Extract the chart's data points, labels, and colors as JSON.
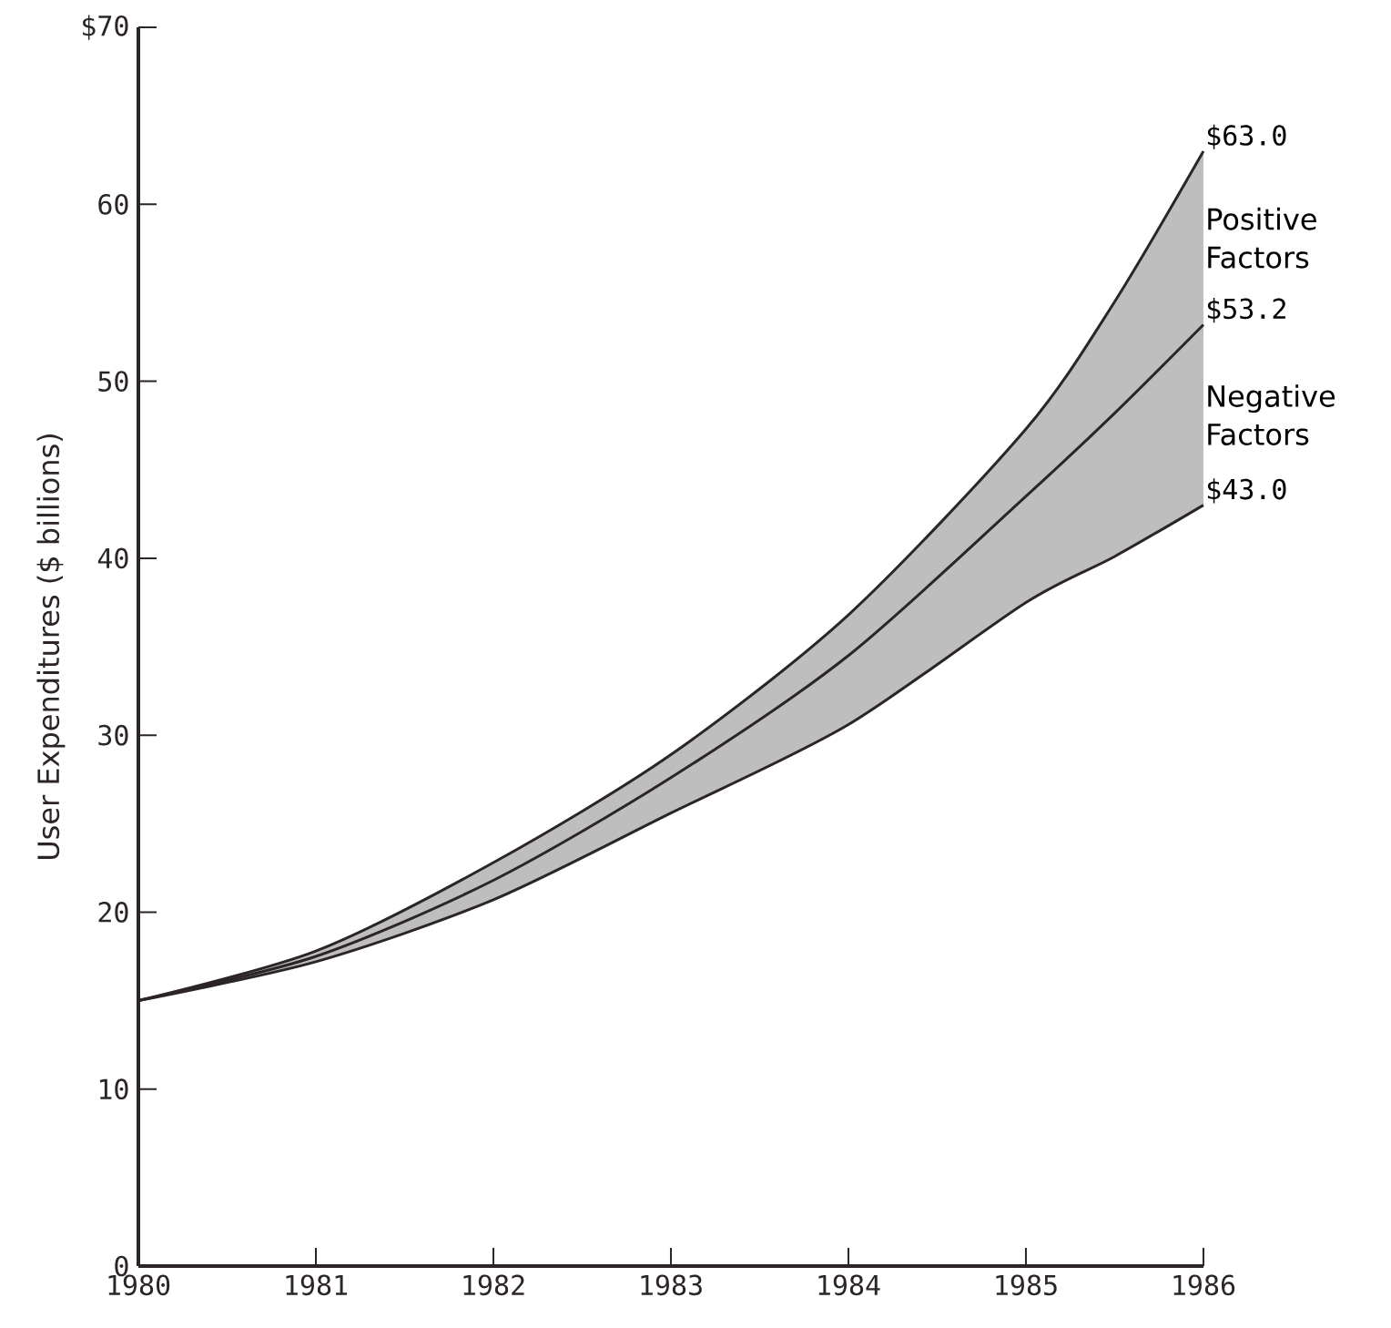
{
  "chart_data": {
    "type": "line",
    "ylabel": "User Expenditures ($ billions)",
    "x": [
      1980,
      1981,
      1982,
      1983,
      1984,
      1985,
      1985.5,
      1986
    ],
    "series": [
      {
        "color": "#2b2527",
        "values": [
          15,
          17.5,
          21.8,
          27.6,
          34.5,
          43.5,
          48.2,
          53.2
        ],
        "lower": [
          15,
          17.2,
          20.7,
          25.6,
          30.6,
          37.5,
          40.1,
          43.0
        ],
        "upper": [
          15,
          17.8,
          22.8,
          28.9,
          36.8,
          47.3,
          54.5,
          63.0
        ]
      }
    ],
    "xlim": [
      1980,
      1986
    ],
    "xticks": [
      1980,
      1981,
      1982,
      1983,
      1984,
      1985,
      1986
    ],
    "ylim": [
      0,
      70
    ],
    "yticks": [
      0,
      10,
      20,
      30,
      40,
      50,
      60,
      {
        "value": 70,
        "label": "$70"
      }
    ],
    "annotations": [
      "$63.0",
      "Positive Factors",
      "$53.2",
      "Negative Factors",
      "$43.0"
    ],
    "grid": false,
    "marker": "none",
    "line_style": "solid"
  }
}
